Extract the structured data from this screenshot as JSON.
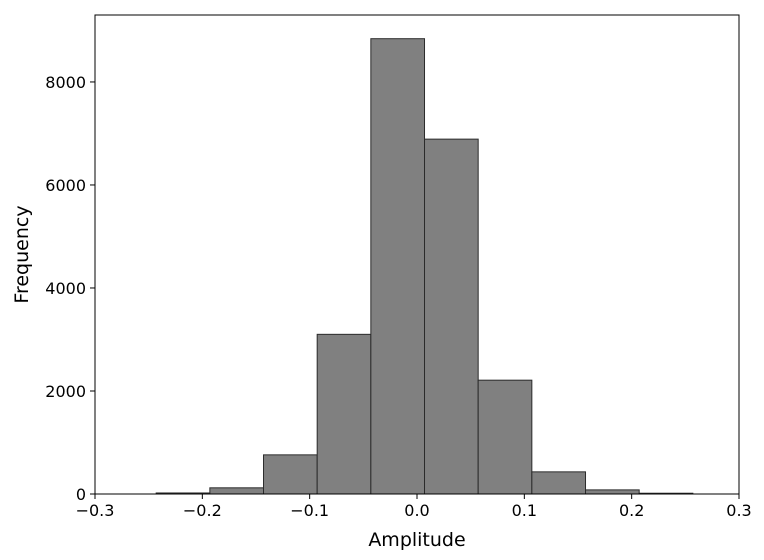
{
  "chart_data": {
    "type": "bar",
    "title": "",
    "xlabel": "Amplitude",
    "ylabel": "Frequency",
    "xlim": [
      -0.3,
      0.3
    ],
    "ylim": [
      0,
      9300
    ],
    "grid": false,
    "bins": [
      {
        "x0": -0.243,
        "x1": -0.193,
        "value": 20
      },
      {
        "x0": -0.193,
        "x1": -0.143,
        "value": 120
      },
      {
        "x0": -0.143,
        "x1": -0.093,
        "value": 760
      },
      {
        "x0": -0.093,
        "x1": -0.043,
        "value": 3100
      },
      {
        "x0": -0.043,
        "x1": 0.007,
        "value": 8840
      },
      {
        "x0": 0.007,
        "x1": 0.057,
        "value": 6890
      },
      {
        "x0": 0.057,
        "x1": 0.107,
        "value": 2210
      },
      {
        "x0": 0.107,
        "x1": 0.157,
        "value": 430
      },
      {
        "x0": 0.157,
        "x1": 0.207,
        "value": 80
      },
      {
        "x0": 0.207,
        "x1": 0.257,
        "value": 15
      }
    ],
    "xticks": [
      {
        "value": -0.3,
        "label": "−0.3"
      },
      {
        "value": -0.2,
        "label": "−0.2"
      },
      {
        "value": -0.1,
        "label": "−0.1"
      },
      {
        "value": 0.0,
        "label": "0.0"
      },
      {
        "value": 0.1,
        "label": "0.1"
      },
      {
        "value": 0.2,
        "label": "0.2"
      },
      {
        "value": 0.3,
        "label": "0.3"
      }
    ],
    "yticks": [
      {
        "value": 0,
        "label": "0"
      },
      {
        "value": 2000,
        "label": "2000"
      },
      {
        "value": 4000,
        "label": "4000"
      },
      {
        "value": 6000,
        "label": "6000"
      },
      {
        "value": 8000,
        "label": "8000"
      }
    ],
    "colors": {
      "bar_fill": "#808080",
      "bar_edge": "#2b2b2b"
    }
  }
}
